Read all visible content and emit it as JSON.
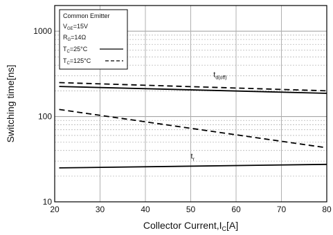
{
  "chart_data": {
    "type": "line",
    "xlabel": "Collector Current,I",
    "xlabel_sub": "C",
    "xlabel_unit": "[A]",
    "ylabel": "Switching time[ns]",
    "xlim": [
      20,
      80
    ],
    "ylim": [
      10,
      2000
    ],
    "yscale": "log",
    "grid": true,
    "x_ticks": [
      "20",
      "30",
      "40",
      "50",
      "60",
      "70",
      "80"
    ],
    "y_ticks": [
      "10",
      "100",
      "1000"
    ],
    "legend": {
      "position": "top-left",
      "title": "Common Emitter",
      "conditions": [
        {
          "main": "V",
          "sub": "GE",
          "rest": "=15V"
        },
        {
          "main": "R",
          "sub": "G",
          "rest": "=14Ω"
        }
      ],
      "entries": [
        {
          "main": "T",
          "sub": "C",
          "rest": "=25°C",
          "style": "solid"
        },
        {
          "main": "T",
          "sub": "C",
          "rest": "=125°C",
          "style": "dashed"
        }
      ]
    },
    "annotations": [
      {
        "main": "t",
        "sub": "d(off)",
        "x": 55,
        "y": 290
      },
      {
        "main": "t",
        "sub": "r",
        "x": 50,
        "y": 32
      }
    ],
    "series": [
      {
        "label": "td(off) Tc=25°C",
        "style": "solid",
        "x": [
          21,
          80
        ],
        "y": [
          225,
          187
        ]
      },
      {
        "label": "td(off) Tc=125°C",
        "style": "dashed",
        "x": [
          21,
          80
        ],
        "y": [
          250,
          200
        ]
      },
      {
        "label": "tr Tc=25°C",
        "style": "solid",
        "x": [
          21,
          80
        ],
        "y": [
          25,
          27.5
        ]
      },
      {
        "label": "tr Tc=125°C",
        "style": "dashed",
        "x": [
          21,
          80
        ],
        "y": [
          121,
          43
        ]
      }
    ]
  }
}
